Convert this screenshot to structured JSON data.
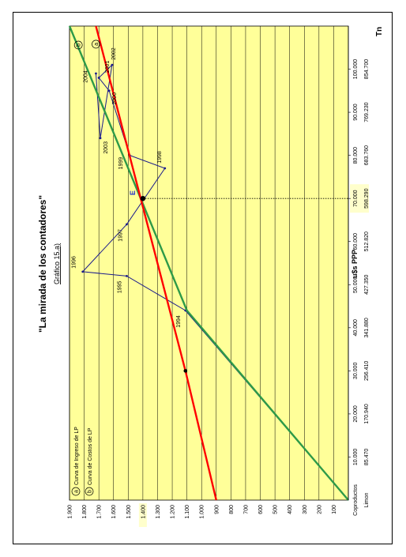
{
  "chart_data": {
    "type": "line",
    "title": "\"La mirada de los contadores\"",
    "subtitle": "Gráfico 15.a)",
    "ylabel": "u$s PPP",
    "xlabel_unit": "Tn",
    "ylim": [
      0,
      1900
    ],
    "xlim": [
      0,
      110000
    ],
    "grid": true,
    "y_ticks": [
      "100",
      "200",
      "300",
      "400",
      "500",
      "600",
      "700",
      "800",
      "900",
      "1.000",
      "1.100",
      "1.200",
      "1.300",
      "1.400",
      "1.500",
      "1.600",
      "1.700",
      "1.800",
      "1.900"
    ],
    "x_tick_values": [
      10000,
      20000,
      30000,
      40000,
      50000,
      60000,
      70000,
      80000,
      90000,
      100000
    ],
    "x_ticks_row1": [
      "Coproductos",
      "10.000",
      "20.000",
      "30.000",
      "40.000",
      "50.000",
      "60.000",
      "70.000",
      "80.000",
      "90.000",
      "100.000"
    ],
    "x_ticks_row2": [
      "Limon",
      "85.470",
      "170.940",
      "256.410",
      "341.880",
      "427.350",
      "512.820",
      "598.290",
      "683.760",
      "769.230",
      "854.700"
    ],
    "legend": [
      {
        "marker": "a",
        "label": "Curva de Ingreso de LP"
      },
      {
        "marker": "b",
        "label": "Curva de Costos de LP"
      }
    ],
    "series": [
      {
        "name": "Curva de Ingreso de LP",
        "marker": "a",
        "color": "#2e9a48",
        "points": [
          [
            0,
            0
          ],
          [
            44000,
            1100
          ],
          [
            110000,
            1900
          ]
        ]
      },
      {
        "name": "Curva de Costos de LP",
        "marker": "b",
        "color": "#ff0000",
        "points": [
          [
            0,
            900
          ],
          [
            30000,
            1110
          ],
          [
            110000,
            1720
          ]
        ]
      }
    ],
    "trajectory": {
      "color": "#1a1a8c",
      "points": [
        {
          "x": 0,
          "y": 0,
          "label": ""
        },
        {
          "x": 44000,
          "y": 1110,
          "label": "1994"
        },
        {
          "x": 52000,
          "y": 1510,
          "label": "1995"
        },
        {
          "x": 53000,
          "y": 1810,
          "label": "1996"
        },
        {
          "x": 64000,
          "y": 1510,
          "label": "1997"
        },
        {
          "x": 77000,
          "y": 1250,
          "label": "1998"
        },
        {
          "x": 80000,
          "y": 1490,
          "label": "1999"
        },
        {
          "x": 95000,
          "y": 1630,
          "label": "2000"
        },
        {
          "x": 98000,
          "y": 1700,
          "label": "2001"
        },
        {
          "x": 101000,
          "y": 1610,
          "label": "2002"
        },
        {
          "x": 84000,
          "y": 1690,
          "label": "2003"
        },
        {
          "x": 99000,
          "y": 1720,
          "label": "2004"
        }
      ]
    },
    "equilibrium": {
      "label": "E",
      "x": 70000,
      "y": 1400,
      "x_label": "70.000",
      "x_label2": "598.290",
      "y_label": "1.400"
    },
    "marked_point": {
      "x": 30000,
      "y": 1110
    },
    "colors": {
      "plot_bg": "#ffff99",
      "highlight_bg": "#ffffcc",
      "highlight_text": "#c8c890",
      "gridline": "#000000"
    }
  }
}
